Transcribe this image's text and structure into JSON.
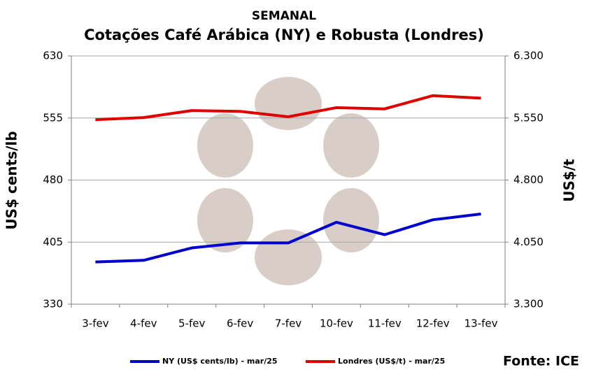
{
  "chart_data": {
    "type": "line",
    "title": "SEMANAL",
    "subtitle": "Cotações Café Arábica (NY) e Robusta (Londres)",
    "y_label": "US$ cents/lb",
    "y2_label": "US$/t",
    "annotation": "Fonte: ICE",
    "categories": [
      "3-fev",
      "4-fev",
      "5-fev",
      "6-fev",
      "7-fev",
      "10-fev",
      "11-fev",
      "12-fev",
      "13-fev"
    ],
    "series": [
      {
        "name": "NY (US$ cents/lb) - mar/25",
        "color": "#0000cc",
        "values": [
          381,
          383,
          398,
          404,
          404,
          429,
          414,
          432,
          439
        ]
      },
      {
        "name": "Londres (US$/t) - mar/25",
        "color": "#e00000",
        "axis": "y2",
        "values": [
          5530,
          5555,
          5640,
          5630,
          5565,
          5675,
          5660,
          5820,
          5790
        ]
      }
    ],
    "ylim": [
      330,
      630
    ],
    "yticks": [
      330,
      405,
      480,
      555,
      630
    ],
    "y2lim": [
      3300,
      6300
    ],
    "y2ticks": [
      {
        "value": 3300,
        "label": "3.300"
      },
      {
        "value": 4050,
        "label": "4.050"
      },
      {
        "value": 4800,
        "label": "4.800"
      },
      {
        "value": 5550,
        "label": "5.550"
      },
      {
        "value": 6300,
        "label": "6.300"
      }
    ],
    "grid": true,
    "legend": "bottom"
  }
}
